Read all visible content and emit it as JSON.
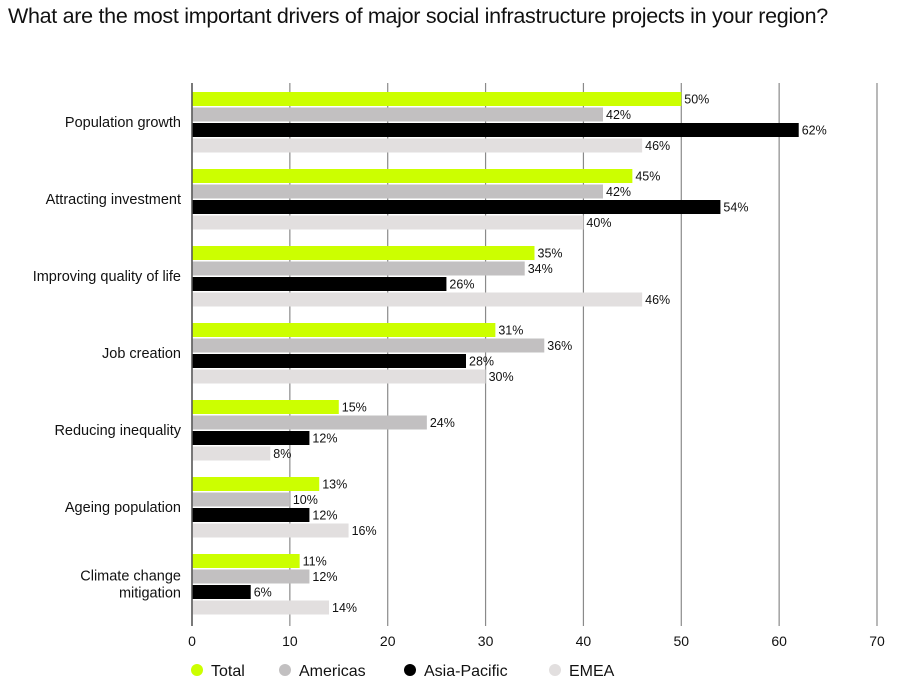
{
  "chart_data": {
    "type": "bar",
    "orientation": "horizontal",
    "title": "What are the most important drivers of major social infrastructure projects in your region?",
    "categories": [
      [
        "Population growth"
      ],
      [
        "Attracting investment"
      ],
      [
        "Improving quality of life"
      ],
      [
        "Job creation"
      ],
      [
        "Reducing inequality"
      ],
      [
        "Ageing population"
      ],
      [
        "Climate change",
        "mitigation"
      ]
    ],
    "series": [
      {
        "name": "Total",
        "color": "#ccff00",
        "values": [
          50,
          45,
          35,
          31,
          15,
          13,
          11
        ]
      },
      {
        "name": "Americas",
        "color": "#c2c0c1",
        "values": [
          42,
          42,
          34,
          36,
          24,
          10,
          12
        ]
      },
      {
        "name": "Asia-Pacific",
        "color": "#000000",
        "values": [
          62,
          54,
          26,
          28,
          12,
          12,
          6
        ]
      },
      {
        "name": "EMEA",
        "color": "#e2dfdf",
        "values": [
          46,
          40,
          46,
          30,
          8,
          16,
          14
        ]
      }
    ],
    "value_suffix": "%",
    "xlim": [
      0,
      70
    ],
    "xticks": [
      0,
      10,
      20,
      30,
      40,
      50,
      60,
      70
    ],
    "grid": true,
    "legend": "bottom"
  }
}
